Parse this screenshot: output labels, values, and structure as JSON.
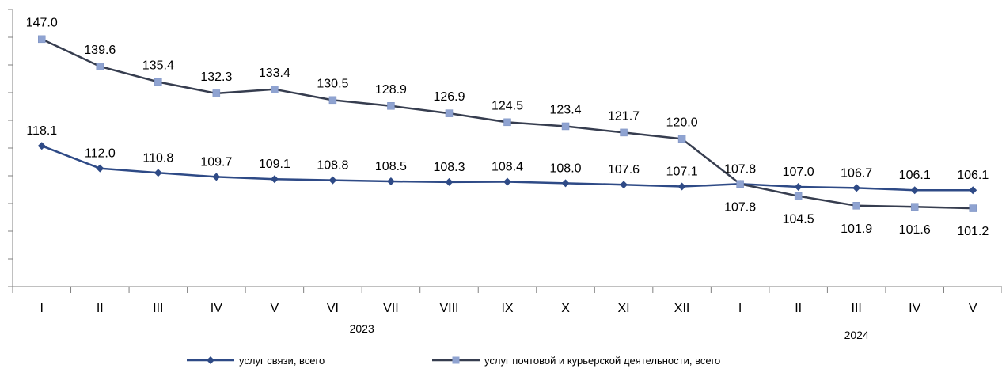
{
  "chart_data": {
    "type": "line",
    "title": "",
    "xlabel": "",
    "ylabel": "",
    "categories": [
      "I",
      "II",
      "III",
      "IV",
      "V",
      "VI",
      "VII",
      "VIII",
      "IX",
      "X",
      "XI",
      "XII",
      "I",
      "II",
      "III",
      "IV",
      "V"
    ],
    "year_groups": [
      {
        "label": "2023",
        "start": 0,
        "end": 11
      },
      {
        "label": "2024",
        "start": 12,
        "end": 16
      }
    ],
    "ylim": [
      80,
      155
    ],
    "y_ticks": [
      80,
      87.5,
      95,
      102.5,
      110,
      117.5,
      125,
      132.5,
      140,
      147.5,
      155
    ],
    "y_tick_labels_shown": false,
    "grid": false,
    "legend_position": "bottom",
    "series": [
      {
        "name": "услуг связи, всего",
        "color": "#2e4a86",
        "marker": "diamond",
        "values": [
          118.1,
          112.0,
          110.8,
          109.7,
          109.1,
          108.8,
          108.5,
          108.3,
          108.4,
          108.0,
          107.6,
          107.1,
          107.8,
          107.0,
          106.7,
          106.1,
          106.1
        ],
        "labels": [
          "118.1",
          "112.0",
          "110.8",
          "109.7",
          "109.1",
          "108.8",
          "108.5",
          "108.3",
          "108.4",
          "108.0",
          "107.6",
          "107.1",
          "107.8",
          "107.0",
          "106.7",
          "106.1",
          "106.1"
        ],
        "label_position": "above"
      },
      {
        "name": "услуг почтовой и курьерской деятельности, всего",
        "color": "#8fa3d1",
        "line_color": "#363d4f",
        "marker": "square",
        "values": [
          147.0,
          139.6,
          135.4,
          132.3,
          133.4,
          130.5,
          128.9,
          126.9,
          124.5,
          123.4,
          121.7,
          120.0,
          107.8,
          104.5,
          101.9,
          101.6,
          101.2
        ],
        "labels": [
          "147.0",
          "139.6",
          "135.4",
          "132.3",
          "133.4",
          "130.5",
          "128.9",
          "126.9",
          "124.5",
          "123.4",
          "121.7",
          "120.0",
          "107.8",
          "104.5",
          "101.9",
          "101.6",
          "101.2"
        ],
        "label_position": "above_then_below_from_index_12"
      }
    ]
  }
}
